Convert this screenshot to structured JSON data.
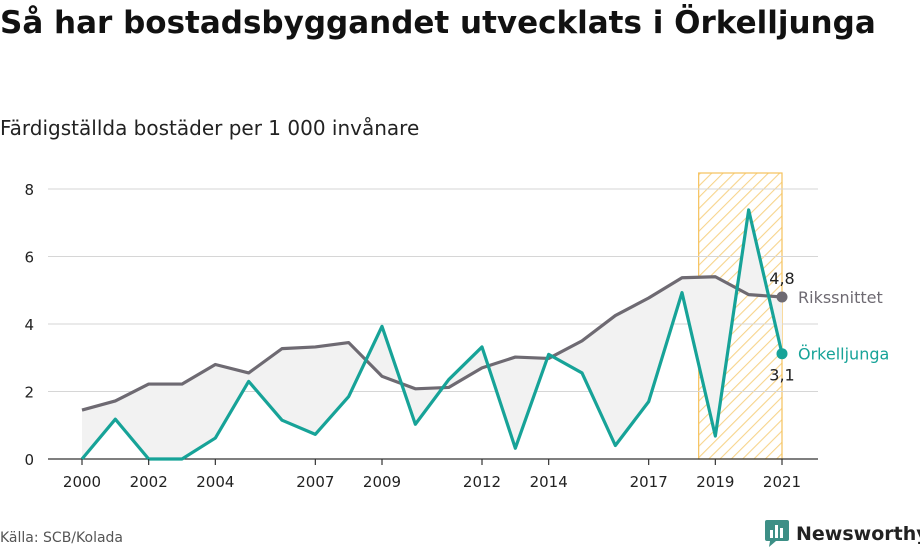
{
  "header": {
    "title": "Så har bostadsbyggandet utvecklats i Örkelljunga",
    "subtitle": "Färdigställda bostäder per 1 000 invånare"
  },
  "footer": {
    "source": "Källa: SCB/Kolada",
    "brand": "Newsworthy"
  },
  "colors": {
    "rikssnittet": "#6e6a72",
    "orkelljunga": "#17a398",
    "highlight": "#f5c15c",
    "area": "#f2f2f2"
  },
  "chart_data": {
    "type": "line",
    "x": [
      2000,
      2001,
      2002,
      2003,
      2004,
      2005,
      2006,
      2007,
      2008,
      2009,
      2010,
      2011,
      2012,
      2013,
      2014,
      2015,
      2016,
      2017,
      2018,
      2019,
      2020,
      2021
    ],
    "x_tick_labels": [
      "2000",
      "2002",
      "2004",
      "2007",
      "2009",
      "2012",
      "2014",
      "2017",
      "2019",
      "2021"
    ],
    "y_ticks": [
      0,
      2,
      4,
      6,
      8
    ],
    "ylim": [
      0,
      8
    ],
    "grid": true,
    "highlight_range": [
      2018.5,
      2021
    ],
    "series": [
      {
        "name": "Rikssnittet",
        "end_label": "4,8",
        "values": [
          1.45,
          1.72,
          2.22,
          2.22,
          2.8,
          2.55,
          3.27,
          3.32,
          3.45,
          2.45,
          2.08,
          2.12,
          2.7,
          3.02,
          2.98,
          3.5,
          4.25,
          4.77,
          5.37,
          5.4,
          4.87,
          4.8
        ]
      },
      {
        "name": "Örkelljunga",
        "end_label": "3,1",
        "values": [
          0.0,
          1.18,
          0.0,
          0.0,
          0.62,
          2.3,
          1.15,
          0.73,
          1.85,
          3.93,
          1.03,
          2.35,
          3.32,
          0.32,
          3.1,
          2.55,
          0.4,
          1.7,
          4.93,
          0.68,
          7.38,
          3.12
        ]
      }
    ]
  }
}
